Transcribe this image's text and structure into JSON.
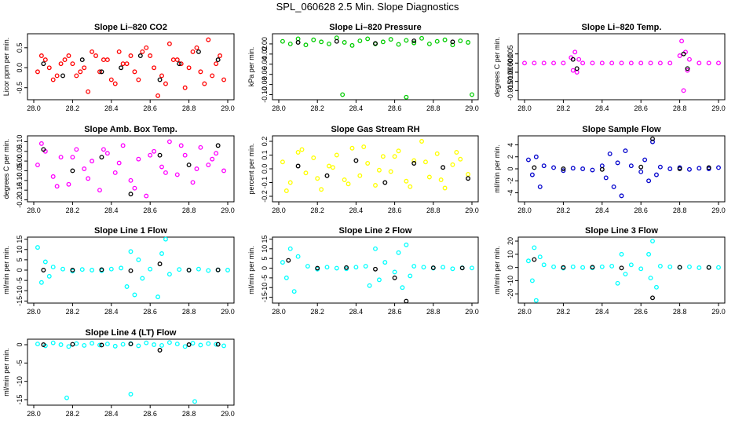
{
  "title": "SPL_060628  2.5 Min. Slope Diagnostics",
  "colors": {
    "overlay": "#000000"
  },
  "chart_data": [
    {
      "type": "scatter",
      "title": "Slope Li–820 CO2",
      "ylabel": "Licor ppm per min.",
      "color": "#ff0000",
      "xlim": [
        28.0,
        29.0
      ],
      "ylim": [
        -0.8,
        0.85
      ],
      "xticks": [
        "28.0",
        "28.2",
        "28.4",
        "28.6",
        "28.8",
        "29.0"
      ],
      "yticks": [
        -0.5,
        0.0,
        0.5
      ],
      "ytick_labels": [
        "-0.5",
        "0.0",
        "0.5"
      ],
      "x": [
        28.02,
        28.06,
        28.1,
        28.14,
        28.18,
        28.22,
        28.26,
        28.3,
        28.34,
        28.38,
        28.42,
        28.46,
        28.5,
        28.54,
        28.58,
        28.62,
        28.66,
        28.7,
        28.74,
        28.78,
        28.82,
        28.86,
        28.9,
        28.94,
        28.98,
        28.04,
        28.12,
        28.2,
        28.28,
        28.36,
        28.44,
        28.52,
        28.6,
        28.68,
        28.76,
        28.84,
        28.92,
        28.08,
        28.16,
        28.24,
        28.32,
        28.4,
        28.48,
        28.56,
        28.64,
        28.72,
        28.8,
        28.88,
        28.96
      ],
      "y": [
        -0.1,
        0.2,
        -0.3,
        0.1,
        0.3,
        -0.2,
        0.0,
        0.4,
        -0.1,
        0.2,
        -0.4,
        0.1,
        0.3,
        -0.3,
        0.5,
        0.0,
        -0.2,
        0.6,
        0.2,
        -0.5,
        0.4,
        -0.1,
        0.7,
        0.1,
        -0.3,
        0.3,
        -0.2,
        0.1,
        -0.6,
        0.2,
        0.4,
        -0.1,
        0.3,
        -0.4,
        0.1,
        0.5,
        -0.2,
        0.0,
        0.2,
        -0.1,
        0.3,
        -0.3,
        0.1,
        0.4,
        -0.7,
        0.2,
        0.0,
        -0.4,
        0.3
      ],
      "x2": [
        28.05,
        28.15,
        28.25,
        28.35,
        28.45,
        28.55,
        28.65,
        28.75,
        28.85,
        28.95
      ],
      "y2": [
        0.1,
        -0.2,
        0.2,
        -0.1,
        0.0,
        0.3,
        -0.3,
        0.1,
        0.4,
        0.2
      ]
    },
    {
      "type": "scatter",
      "title": "Slope Li–820 Pressure",
      "ylabel": "kPa per min.",
      "color": "#00cc00",
      "xlim": [
        28.0,
        29.0
      ],
      "ylim": [
        -0.11,
        0.02
      ],
      "xticks": [
        "28.0",
        "28.2",
        "28.4",
        "28.6",
        "28.8",
        "29.0"
      ],
      "yticks": [
        0.0,
        -0.02,
        -0.04,
        -0.06,
        -0.08,
        -0.1
      ],
      "ytick_labels": [
        "0.00",
        "-0.02",
        "-0.04",
        "-0.06",
        "-0.08",
        "-0.10"
      ],
      "x": [
        28.02,
        28.06,
        28.1,
        28.14,
        28.18,
        28.22,
        28.26,
        28.3,
        28.34,
        28.38,
        28.42,
        28.46,
        28.5,
        28.54,
        28.58,
        28.62,
        28.66,
        28.7,
        28.74,
        28.78,
        28.82,
        28.86,
        28.9,
        28.94,
        28.98,
        28.33,
        28.66,
        29.0
      ],
      "y": [
        0.005,
        0.0,
        0.01,
        -0.002,
        0.008,
        0.004,
        0.0,
        0.012,
        0.003,
        -0.003,
        0.006,
        0.01,
        0.0,
        0.004,
        0.009,
        -0.001,
        0.007,
        0.002,
        0.011,
        0.0,
        0.005,
        0.008,
        -0.002,
        0.006,
        0.003,
        -0.1,
        -0.105,
        -0.1
      ],
      "x2": [
        28.1,
        28.3,
        28.5,
        28.7,
        28.9
      ],
      "y2": [
        0.003,
        0.005,
        0.001,
        0.006,
        0.004
      ]
    },
    {
      "type": "scatter",
      "title": "Slope Li–820 Temp.",
      "ylabel": "degrees C per min.",
      "color": "#ff00ff",
      "xlim": [
        28.0,
        29.0
      ],
      "ylim": [
        -0.02,
        0.016
      ],
      "xticks": [
        "28.0",
        "28.2",
        "28.4",
        "28.6",
        "28.8",
        "29.0"
      ],
      "yticks": [
        0.005,
        0.0,
        -0.005,
        -0.01,
        -0.015
      ],
      "ytick_labels": [
        "0.005",
        "0.000",
        "-0.005",
        "-0.010",
        "-0.015"
      ],
      "x": [
        28.0,
        28.05,
        28.1,
        28.15,
        28.2,
        28.24,
        28.25,
        28.26,
        28.27,
        28.28,
        28.3,
        28.35,
        28.4,
        28.45,
        28.5,
        28.55,
        28.6,
        28.65,
        28.7,
        28.75,
        28.8,
        28.81,
        28.82,
        28.83,
        28.84,
        28.85,
        28.9,
        28.95,
        29.0
      ],
      "y": [
        0.0,
        0.0,
        0.0,
        0.0,
        0.0,
        0.003,
        -0.004,
        0.006,
        -0.005,
        0.002,
        0.0,
        0.0,
        0.0,
        0.0,
        0.0,
        0.0,
        0.0,
        0.0,
        0.0,
        0.0,
        0.004,
        0.012,
        -0.015,
        0.006,
        -0.004,
        0.002,
        0.0,
        0.0,
        0.0
      ],
      "x2": [
        28.25,
        28.27,
        28.82,
        28.84
      ],
      "y2": [
        0.002,
        -0.003,
        0.005,
        -0.003
      ]
    },
    {
      "type": "scatter",
      "title": "Slope Amb. Box Temp.",
      "ylabel": "degrees C per min.",
      "color": "#ff00ff",
      "xlim": [
        28.0,
        29.0
      ],
      "ylim": [
        -0.21,
        0.13
      ],
      "xticks": [
        "28.0",
        "28.2",
        "28.4",
        "28.6",
        "28.8",
        "29.0"
      ],
      "yticks": [
        0.1,
        0.05,
        0.0,
        -0.05,
        -0.1,
        -0.15,
        -0.2
      ],
      "ytick_labels": [
        "0.10",
        "0.05",
        "0.00",
        "-0.05",
        "-0.10",
        "-0.15",
        "-0.20"
      ],
      "x": [
        28.02,
        28.06,
        28.1,
        28.14,
        28.18,
        28.22,
        28.26,
        28.3,
        28.34,
        28.38,
        28.42,
        28.46,
        28.5,
        28.54,
        28.58,
        28.62,
        28.66,
        28.7,
        28.74,
        28.78,
        28.82,
        28.86,
        28.9,
        28.94,
        28.98,
        28.04,
        28.12,
        28.2,
        28.28,
        28.36,
        28.44,
        28.52,
        28.6,
        28.68,
        28.76,
        28.84,
        28.92
      ],
      "y": [
        -0.02,
        0.05,
        -0.08,
        0.02,
        -0.12,
        0.06,
        -0.04,
        0.0,
        -0.15,
        0.04,
        -0.06,
        0.08,
        -0.1,
        0.01,
        -0.18,
        0.05,
        -0.03,
        0.1,
        -0.07,
        0.03,
        -0.11,
        0.07,
        -0.02,
        0.04,
        -0.05,
        0.09,
        -0.13,
        0.02,
        -0.09,
        0.06,
        -0.01,
        -0.14,
        0.03,
        -0.06,
        0.08,
        -0.04,
        0.01
      ],
      "x2": [
        28.05,
        28.2,
        28.35,
        28.5,
        28.65,
        28.8,
        28.95
      ],
      "y2": [
        0.06,
        -0.05,
        0.02,
        -0.17,
        0.03,
        -0.02,
        0.08
      ]
    },
    {
      "type": "scatter",
      "title": "Slope Gas Stream RH",
      "ylabel": "percent per min.",
      "color": "#ffff00",
      "xlim": [
        28.0,
        29.0
      ],
      "ylim": [
        -0.24,
        0.24
      ],
      "xticks": [
        "28.0",
        "28.2",
        "28.4",
        "28.6",
        "28.8",
        "29.0"
      ],
      "yticks": [
        0.2,
        0.1,
        0.0,
        -0.1,
        -0.2
      ],
      "ytick_labels": [
        "0.2",
        "0.1",
        "0.0",
        "-0.1",
        "-0.2"
      ],
      "x": [
        28.02,
        28.06,
        28.1,
        28.14,
        28.18,
        28.22,
        28.26,
        28.3,
        28.34,
        28.38,
        28.42,
        28.46,
        28.5,
        28.54,
        28.58,
        28.62,
        28.66,
        28.7,
        28.74,
        28.78,
        28.82,
        28.86,
        28.9,
        28.94,
        28.98,
        28.04,
        28.12,
        28.2,
        28.28,
        28.36,
        28.44,
        28.52,
        28.6,
        28.68,
        28.76,
        28.84,
        28.92
      ],
      "y": [
        0.05,
        -0.1,
        0.12,
        -0.03,
        0.08,
        -0.15,
        0.02,
        0.1,
        -0.08,
        0.15,
        -0.05,
        0.04,
        -0.12,
        0.09,
        -0.02,
        0.13,
        -0.09,
        0.06,
        0.2,
        -0.06,
        0.11,
        -0.14,
        0.03,
        0.07,
        -0.04,
        -0.16,
        0.14,
        -0.07,
        0.01,
        -0.11,
        0.16,
        -0.01,
        0.09,
        -0.13,
        0.05,
        -0.08,
        0.12
      ],
      "x2": [
        28.1,
        28.25,
        28.4,
        28.55,
        28.7,
        28.85,
        28.98
      ],
      "y2": [
        0.02,
        -0.05,
        0.06,
        -0.1,
        0.04,
        0.01,
        -0.07
      ]
    },
    {
      "type": "scatter",
      "title": "Slope Sample Flow",
      "ylabel": "ml/min per min.",
      "color": "#0000cc",
      "xlim": [
        28.0,
        29.0
      ],
      "ylim": [
        -5.5,
        5.5
      ],
      "xticks": [
        "28.0",
        "28.2",
        "28.4",
        "28.6",
        "28.8",
        "29.0"
      ],
      "yticks": [
        4,
        2,
        0,
        -2,
        -4
      ],
      "ytick_labels": [
        "4",
        "2",
        "0",
        "-2",
        "-4"
      ],
      "x": [
        28.02,
        28.04,
        28.06,
        28.08,
        28.1,
        28.15,
        28.2,
        28.25,
        28.3,
        28.35,
        28.4,
        28.42,
        28.44,
        28.46,
        28.48,
        28.5,
        28.52,
        28.55,
        28.6,
        28.62,
        28.64,
        28.66,
        28.68,
        28.7,
        28.75,
        28.8,
        28.85,
        28.9,
        28.95,
        29.0
      ],
      "y": [
        1.5,
        -1.0,
        2.0,
        -3.0,
        0.5,
        0.2,
        -0.3,
        0.1,
        0.0,
        -0.2,
        0.5,
        -1.5,
        2.5,
        -3.0,
        1.0,
        -4.5,
        3.0,
        0.5,
        -0.5,
        1.5,
        -2.0,
        4.5,
        -1.0,
        0.3,
        0.0,
        0.2,
        -0.1,
        0.1,
        0.0,
        0.2
      ],
      "x2": [
        28.05,
        28.2,
        28.4,
        28.6,
        28.66,
        28.8,
        28.95
      ],
      "y2": [
        0.2,
        0.0,
        -0.1,
        0.3,
        5.0,
        0.0,
        0.2
      ]
    },
    {
      "type": "scatter",
      "title": "Slope Line 1 Flow",
      "ylabel": "ml/min per min.",
      "color": "#00ffff",
      "xlim": [
        28.0,
        29.0
      ],
      "ylim": [
        -16,
        16
      ],
      "xticks": [
        "28.0",
        "28.2",
        "28.4",
        "28.6",
        "28.8",
        "29.0"
      ],
      "yticks": [
        15,
        10,
        5,
        0,
        -5,
        -10,
        -15
      ],
      "ytick_labels": [
        "15",
        "10",
        "5",
        "0",
        "-5",
        "-10",
        "-15"
      ],
      "x": [
        28.02,
        28.04,
        28.06,
        28.08,
        28.1,
        28.15,
        28.2,
        28.25,
        28.3,
        28.35,
        28.4,
        28.45,
        28.48,
        28.5,
        28.52,
        28.54,
        28.56,
        28.6,
        28.64,
        28.66,
        28.68,
        28.7,
        28.75,
        28.8,
        28.85,
        28.9,
        28.95,
        29.0
      ],
      "y": [
        11.0,
        -6.0,
        4.0,
        -3.0,
        1.5,
        0.5,
        -0.5,
        0.3,
        0.0,
        -0.3,
        0.5,
        1.0,
        -8.0,
        9.0,
        -12.0,
        5.0,
        -4.0,
        0.5,
        -13.0,
        8.0,
        15.0,
        -2.0,
        0.3,
        0.0,
        0.5,
        -0.2,
        0.1,
        0.0
      ],
      "x2": [
        28.05,
        28.2,
        28.35,
        28.5,
        28.65,
        28.8,
        28.95
      ],
      "y2": [
        0.0,
        0.0,
        0.2,
        -0.3,
        3.0,
        0.0,
        0.1
      ]
    },
    {
      "type": "scatter",
      "title": "Slope Line 2 Flow",
      "ylabel": "ml/min per min.",
      "color": "#00ffff",
      "xlim": [
        28.0,
        29.0
      ],
      "ylim": [
        -18,
        16
      ],
      "xticks": [
        "28.0",
        "28.2",
        "28.4",
        "28.6",
        "28.8",
        "29.0"
      ],
      "yticks": [
        15,
        10,
        5,
        0,
        -5,
        -10,
        -15
      ],
      "ytick_labels": [
        "15",
        "10",
        "5",
        "0",
        "-5",
        "-10",
        "-15"
      ],
      "x": [
        28.02,
        28.04,
        28.06,
        28.08,
        28.1,
        28.15,
        28.2,
        28.25,
        28.3,
        28.35,
        28.4,
        28.45,
        28.47,
        28.5,
        28.52,
        28.55,
        28.6,
        28.62,
        28.64,
        28.66,
        28.68,
        28.7,
        28.75,
        28.8,
        28.85,
        28.9,
        28.95,
        29.0
      ],
      "y": [
        3.0,
        -5.0,
        10.0,
        -12.0,
        6.0,
        1.0,
        -0.5,
        0.5,
        0.0,
        -0.3,
        0.5,
        1.0,
        -9.0,
        10.0,
        -6.0,
        3.0,
        -2.0,
        8.0,
        -10.0,
        12.0,
        -4.0,
        1.0,
        0.5,
        0.0,
        0.5,
        -0.3,
        0.2,
        0.1
      ],
      "x2": [
        28.05,
        28.2,
        28.35,
        28.5,
        28.6,
        28.66,
        28.8,
        28.95
      ],
      "y2": [
        4.0,
        0.0,
        0.3,
        -0.5,
        -5.0,
        -17.0,
        0.2,
        0.1
      ]
    },
    {
      "type": "scatter",
      "title": "Slope Line 3 Flow",
      "ylabel": "ml/min per min.",
      "color": "#00ffff",
      "xlim": [
        28.0,
        29.0
      ],
      "ylim": [
        -27,
        23
      ],
      "xticks": [
        "28.0",
        "28.2",
        "28.4",
        "28.6",
        "28.8",
        "29.0"
      ],
      "yticks": [
        20,
        10,
        0,
        -10,
        -20
      ],
      "ytick_labels": [
        "20",
        "10",
        "0",
        "-10",
        "-20"
      ],
      "x": [
        28.02,
        28.04,
        28.05,
        28.06,
        28.08,
        28.1,
        28.15,
        28.2,
        28.25,
        28.3,
        28.35,
        28.4,
        28.45,
        28.48,
        28.5,
        28.52,
        28.55,
        28.6,
        28.64,
        28.65,
        28.66,
        28.68,
        28.7,
        28.75,
        28.8,
        28.85,
        28.9,
        28.95,
        29.0
      ],
      "y": [
        5.0,
        -10.0,
        15.0,
        -25.0,
        8.0,
        2.0,
        0.5,
        -0.5,
        0.5,
        0.0,
        -0.3,
        0.5,
        1.0,
        -12.0,
        10.0,
        -5.0,
        2.0,
        -1.0,
        10.0,
        -8.0,
        20.0,
        -15.0,
        1.0,
        0.5,
        0.0,
        0.5,
        -0.2,
        0.1,
        0.0
      ],
      "x2": [
        28.05,
        28.2,
        28.35,
        28.5,
        28.66,
        28.8,
        28.95
      ],
      "y2": [
        6.0,
        0.0,
        0.2,
        -0.4,
        -23.0,
        0.1,
        0.0
      ]
    },
    {
      "type": "scatter",
      "title": "Slope Line 4 (LT) Flow",
      "ylabel": "ml/min per min.",
      "color": "#00ffff",
      "xlim": [
        28.0,
        29.0
      ],
      "ylim": [
        -16.5,
        1.5
      ],
      "xticks": [
        "28.0",
        "28.2",
        "28.4",
        "28.6",
        "28.8",
        "29.0"
      ],
      "yticks": [
        0,
        -5,
        -10,
        -15
      ],
      "ytick_labels": [
        "0",
        "-5",
        "-10",
        "-15"
      ],
      "x": [
        28.02,
        28.06,
        28.1,
        28.14,
        28.18,
        28.22,
        28.26,
        28.3,
        28.34,
        28.38,
        28.42,
        28.46,
        28.5,
        28.54,
        28.58,
        28.62,
        28.66,
        28.7,
        28.74,
        28.78,
        28.82,
        28.86,
        28.9,
        28.94,
        28.98,
        28.17,
        28.5,
        28.83
      ],
      "y": [
        0.2,
        -0.3,
        0.5,
        0.0,
        -0.5,
        0.3,
        -0.2,
        0.4,
        -0.1,
        0.2,
        -0.4,
        0.1,
        0.3,
        -0.3,
        0.5,
        0.0,
        -0.2,
        0.6,
        0.2,
        -0.5,
        0.4,
        -0.1,
        0.3,
        0.1,
        -0.3,
        -14.5,
        -13.5,
        -15.5
      ],
      "x2": [
        28.05,
        28.2,
        28.35,
        28.5,
        28.65,
        28.8,
        28.95
      ],
      "y2": [
        0.0,
        0.1,
        -0.1,
        0.2,
        -1.5,
        0.0,
        0.1
      ]
    }
  ]
}
